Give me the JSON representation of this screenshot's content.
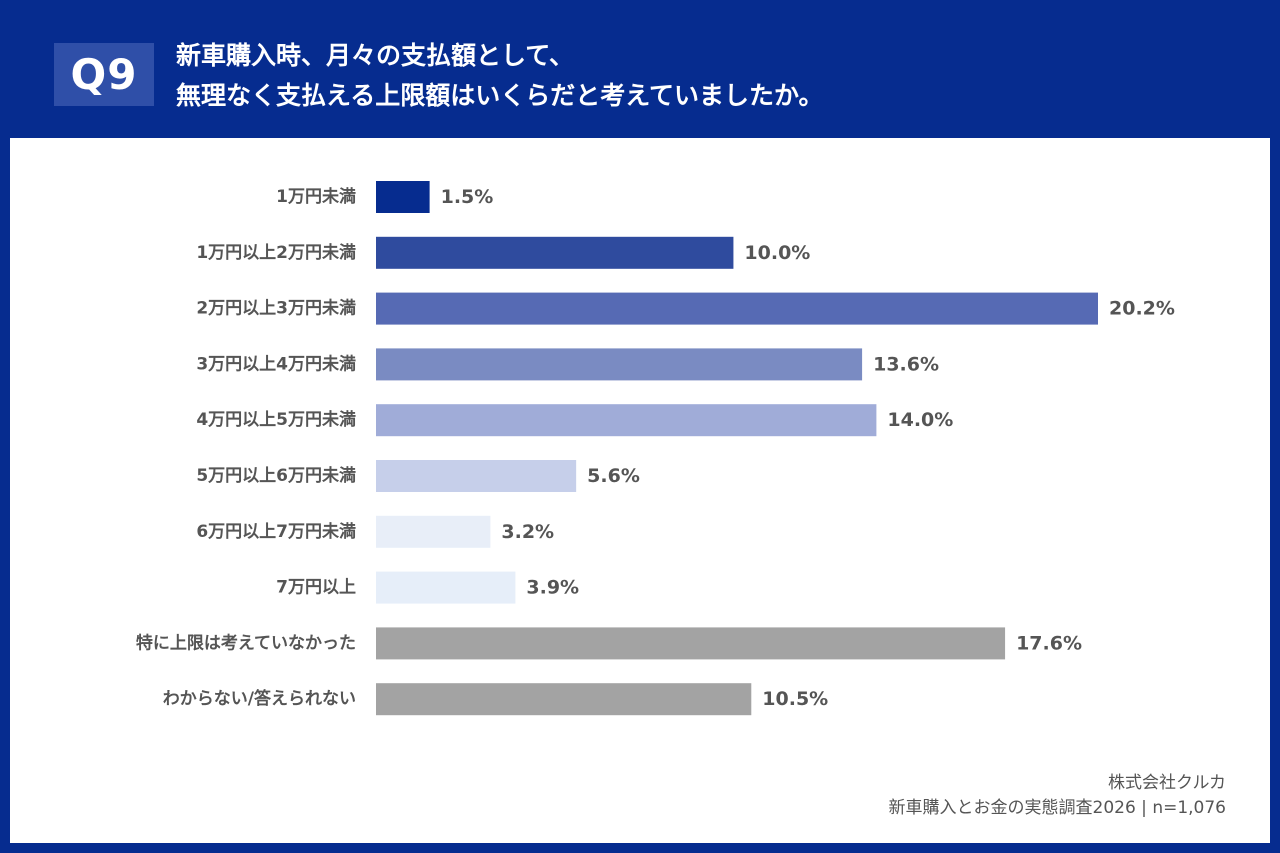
{
  "header": {
    "badge": "Q9",
    "title_line1": "新車購入時、月々の支払額として、",
    "title_line2": "無理なく支払える上限額はいくらだと考えていましたか。"
  },
  "footer": {
    "company": "株式会社クルカ",
    "source": "新車購入とお金の実態調査2026 | n=1,076"
  },
  "colors": {
    "frame": "#062c8f",
    "badge": "#2f4fa8",
    "text": "#555555"
  },
  "chart_data": {
    "type": "bar",
    "orientation": "horizontal",
    "title": "新車購入時、月々の支払額として、無理なく支払える上限額はいくらだと考えていましたか。",
    "xlabel": "",
    "ylabel": "",
    "unit": "%",
    "xlim": [
      0,
      20.2
    ],
    "grid": false,
    "legend": "none",
    "categories": [
      "1万円未満",
      "1万円以上2万円未満",
      "2万円以上3万円未満",
      "3万円以上4万円未満",
      "4万円以上5万円未満",
      "5万円以上6万円未満",
      "6万円以上7万円未満",
      "7万円以上",
      "特に上限は考えていなかった",
      "わからない/答えられない"
    ],
    "values": [
      1.5,
      10.0,
      20.2,
      13.6,
      14.0,
      5.6,
      3.2,
      3.9,
      17.6,
      10.5
    ],
    "value_labels": [
      "1.5%",
      "10.0%",
      "20.2%",
      "13.6%",
      "14.0%",
      "5.6%",
      "3.2%",
      "3.9%",
      "17.6%",
      "10.5%"
    ],
    "bar_colors": [
      "#062c8f",
      "#2f4b9e",
      "#566ab4",
      "#7a8bc2",
      "#a0acd8",
      "#c6cfea",
      "#e8eef8",
      "#e6eef9",
      "#a3a3a3",
      "#a3a3a3"
    ]
  }
}
